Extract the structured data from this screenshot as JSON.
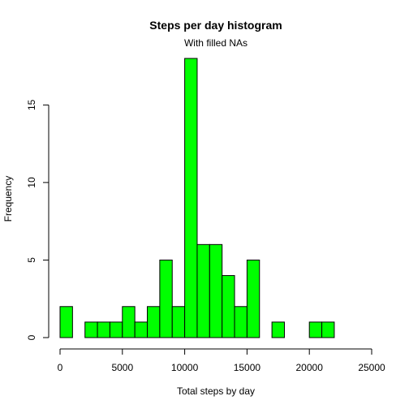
{
  "chart_data": {
    "type": "bar",
    "title": "Steps per day histogram",
    "subtitle": "With filled NAs",
    "xlabel": "Total steps by day",
    "ylabel": "Frequency",
    "bar_color": "#00ff00",
    "bar_border_color": "#000000",
    "xlim": [
      0,
      25000
    ],
    "ylim": [
      0,
      18
    ],
    "x_ticks": [
      0,
      5000,
      10000,
      15000,
      20000,
      25000
    ],
    "y_ticks": [
      0,
      5,
      10,
      15
    ],
    "x_tick_labels": [
      "0",
      "5000",
      "10000",
      "15000",
      "20000",
      "25000"
    ],
    "y_tick_labels": [
      "0",
      "5",
      "10",
      "15"
    ],
    "bin_width": 1000,
    "bins": [
      {
        "start": 0,
        "end": 1000,
        "count": 2
      },
      {
        "start": 1000,
        "end": 2000,
        "count": 0
      },
      {
        "start": 2000,
        "end": 3000,
        "count": 1
      },
      {
        "start": 3000,
        "end": 4000,
        "count": 1
      },
      {
        "start": 4000,
        "end": 5000,
        "count": 1
      },
      {
        "start": 5000,
        "end": 6000,
        "count": 2
      },
      {
        "start": 6000,
        "end": 7000,
        "count": 1
      },
      {
        "start": 7000,
        "end": 8000,
        "count": 2
      },
      {
        "start": 8000,
        "end": 9000,
        "count": 5
      },
      {
        "start": 9000,
        "end": 10000,
        "count": 2
      },
      {
        "start": 10000,
        "end": 11000,
        "count": 18
      },
      {
        "start": 11000,
        "end": 12000,
        "count": 6
      },
      {
        "start": 12000,
        "end": 13000,
        "count": 6
      },
      {
        "start": 13000,
        "end": 14000,
        "count": 4
      },
      {
        "start": 14000,
        "end": 15000,
        "count": 2
      },
      {
        "start": 15000,
        "end": 16000,
        "count": 5
      },
      {
        "start": 16000,
        "end": 17000,
        "count": 0
      },
      {
        "start": 17000,
        "end": 18000,
        "count": 1
      },
      {
        "start": 18000,
        "end": 19000,
        "count": 0
      },
      {
        "start": 19000,
        "end": 20000,
        "count": 0
      },
      {
        "start": 20000,
        "end": 21000,
        "count": 1
      },
      {
        "start": 21000,
        "end": 22000,
        "count": 1
      },
      {
        "start": 22000,
        "end": 23000,
        "count": 0
      },
      {
        "start": 23000,
        "end": 24000,
        "count": 0
      },
      {
        "start": 24000,
        "end": 25000,
        "count": 0
      }
    ]
  }
}
